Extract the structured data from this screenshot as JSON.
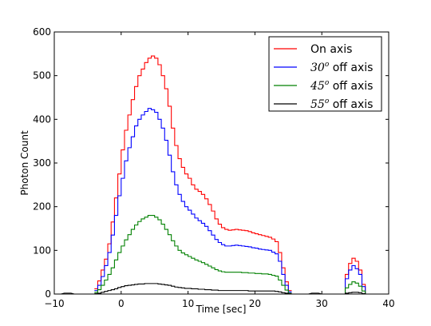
{
  "chart_data": {
    "type": "line",
    "drawstyle": "steps",
    "title": "",
    "xlabel": "Time [sec]",
    "ylabel": "Photon Count",
    "xlim": [
      -10,
      40
    ],
    "ylim": [
      0,
      600
    ],
    "xticks": [
      -10,
      0,
      10,
      20,
      30,
      40
    ],
    "yticks": [
      0,
      100,
      200,
      300,
      400,
      500,
      600
    ],
    "xtick_labels": [
      "−10",
      "0",
      "10",
      "20",
      "30",
      "40"
    ],
    "ytick_labels": [
      "0",
      "100",
      "200",
      "300",
      "400",
      "500",
      "600"
    ],
    "grid": false,
    "legend_position": "upper right",
    "bin_width": 0.5,
    "x": [
      -4,
      -3.5,
      -3,
      -2.5,
      -2,
      -1.5,
      -1,
      -0.5,
      0,
      0.5,
      1,
      1.5,
      2,
      2.5,
      3,
      3.5,
      4,
      4.5,
      5,
      5.5,
      6,
      6.5,
      7,
      7.5,
      8,
      8.5,
      9,
      9.5,
      10,
      10.5,
      11,
      11.5,
      12,
      12.5,
      13,
      13.5,
      14,
      14.5,
      15,
      15.5,
      16,
      16.5,
      17,
      17.5,
      18,
      18.5,
      19,
      19.5,
      20,
      20.5,
      21,
      21.5,
      22,
      22.5,
      23,
      23.5,
      24,
      24.5,
      25
    ],
    "secondary_x": [
      33,
      33.5,
      34,
      34.5,
      35,
      35.5,
      36,
      36.5
    ],
    "baseline_segments": [
      [
        -9,
        -7
      ],
      [
        28,
        30
      ]
    ],
    "series": [
      {
        "name": "On axis",
        "color": "#ff0000",
        "values": [
          12,
          30,
          55,
          80,
          115,
          165,
          220,
          275,
          330,
          375,
          410,
          445,
          475,
          500,
          515,
          530,
          540,
          545,
          540,
          525,
          500,
          470,
          430,
          380,
          340,
          310,
          290,
          275,
          265,
          250,
          240,
          235,
          228,
          218,
          205,
          190,
          172,
          160,
          152,
          148,
          146,
          147,
          148,
          147,
          146,
          145,
          143,
          140,
          138,
          136,
          134,
          132,
          130,
          126,
          120,
          95,
          60,
          28,
          8
        ],
        "secondary_values": [
          0,
          45,
          70,
          82,
          75,
          55,
          22,
          0
        ]
      },
      {
        "name": "30o off axis",
        "legend_prefix": "30",
        "legend_sup": "o",
        "legend_suffix": " off axis",
        "color": "#0000ff",
        "values": [
          8,
          20,
          40,
          65,
          95,
          135,
          180,
          225,
          265,
          305,
          335,
          360,
          385,
          400,
          410,
          418,
          425,
          422,
          416,
          400,
          380,
          352,
          318,
          280,
          250,
          228,
          212,
          200,
          192,
          183,
          174,
          168,
          162,
          155,
          145,
          135,
          125,
          118,
          113,
          110,
          110,
          111,
          112,
          111,
          110,
          109,
          108,
          106,
          105,
          103,
          102,
          101,
          100,
          96,
          92,
          75,
          45,
          20,
          5
        ],
        "secondary_values": [
          0,
          35,
          55,
          65,
          58,
          45,
          17,
          0
        ]
      },
      {
        "name": "45o off axis",
        "legend_prefix": "45",
        "legend_sup": "o",
        "legend_suffix": " off axis",
        "color": "#008000",
        "values": [
          4,
          10,
          20,
          32,
          45,
          60,
          78,
          95,
          110,
          124,
          136,
          148,
          158,
          166,
          172,
          176,
          180,
          180,
          176,
          170,
          160,
          148,
          136,
          122,
          110,
          100,
          94,
          90,
          86,
          82,
          78,
          75,
          72,
          68,
          64,
          60,
          56,
          53,
          51,
          50,
          50,
          50,
          50,
          50,
          49,
          49,
          48,
          48,
          47,
          47,
          46,
          46,
          45,
          43,
          41,
          32,
          20,
          9,
          2
        ],
        "secondary_values": [
          0,
          14,
          22,
          28,
          25,
          18,
          7,
          0
        ]
      },
      {
        "name": "55o off axis",
        "legend_prefix": "55",
        "legend_sup": "o",
        "legend_suffix": " off axis",
        "color": "#000000",
        "values": [
          1,
          2,
          4,
          6,
          8,
          10,
          12,
          15,
          17,
          19,
          20,
          21,
          22,
          23,
          23,
          24,
          24,
          24,
          24,
          23,
          22,
          21,
          20,
          18,
          16,
          15,
          14,
          13,
          13,
          12,
          12,
          11,
          11,
          10,
          10,
          9,
          9,
          8,
          8,
          8,
          8,
          8,
          8,
          8,
          8,
          8,
          7,
          7,
          7,
          7,
          7,
          7,
          7,
          7,
          6,
          5,
          3,
          2,
          1
        ],
        "secondary_values": [
          0,
          2,
          3,
          4,
          4,
          3,
          1,
          0
        ]
      }
    ]
  }
}
